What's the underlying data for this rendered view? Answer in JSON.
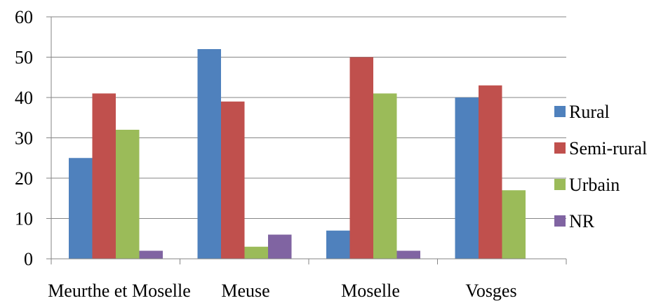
{
  "chart_data": {
    "type": "bar",
    "categories": [
      "Meurthe et Moselle",
      "Meuse",
      "Moselle",
      "Vosges"
    ],
    "series": [
      {
        "name": "Rural",
        "color": "#4F81BD",
        "values": [
          25,
          52,
          7,
          40
        ]
      },
      {
        "name": "Semi-rural",
        "color": "#C0504D",
        "values": [
          41,
          39,
          50,
          43
        ]
      },
      {
        "name": "Urbain",
        "color": "#9BBB59",
        "values": [
          32,
          3,
          41,
          17
        ]
      },
      {
        "name": "NR",
        "color": "#8064A2",
        "values": [
          2,
          6,
          2,
          null
        ]
      }
    ],
    "ylim": [
      0,
      60
    ],
    "yticks": [
      0,
      10,
      20,
      30,
      40,
      50,
      60
    ],
    "grid": true,
    "legend": "right"
  }
}
